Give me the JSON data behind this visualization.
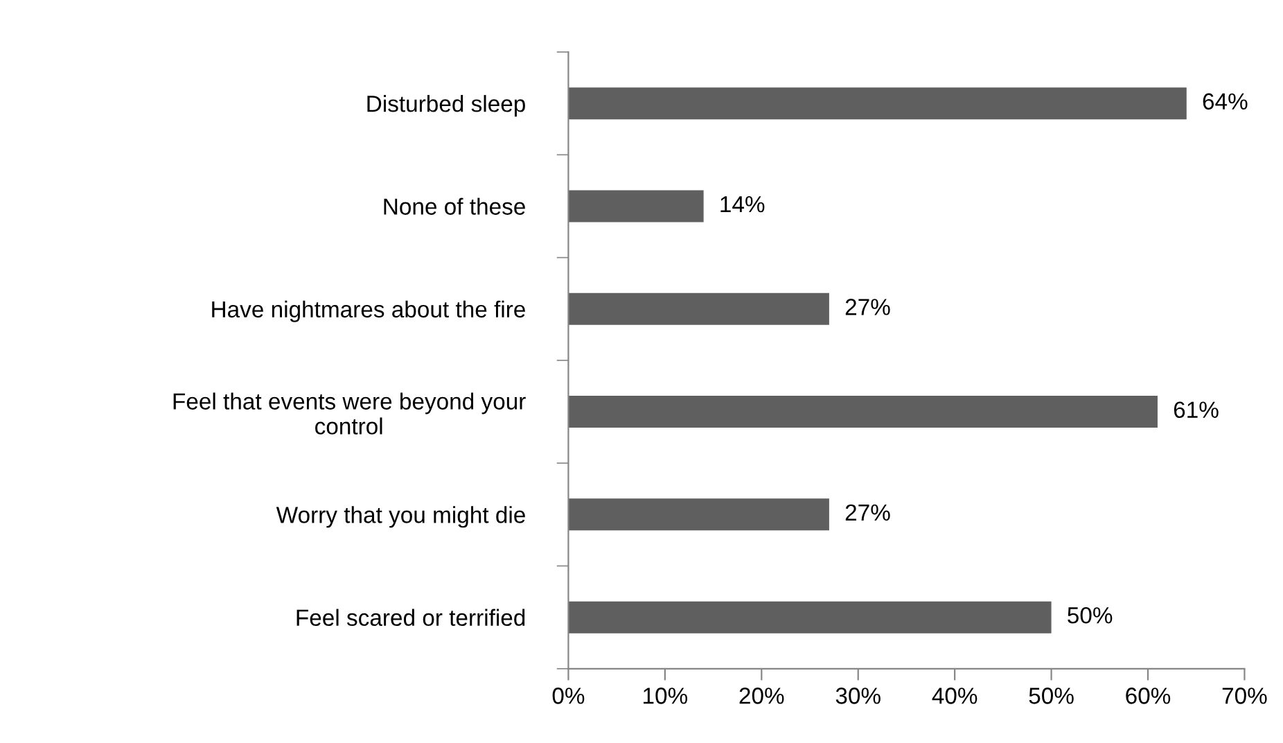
{
  "chart_data": {
    "type": "bar",
    "orientation": "horizontal",
    "categories": [
      "Disturbed sleep",
      "None of these",
      "Have nightmares about the fire",
      "Feel that events were beyond your\ncontrol",
      "Worry that you might die",
      "Feel scared or terrified"
    ],
    "values": [
      64,
      14,
      27,
      61,
      27,
      50
    ],
    "value_labels": [
      "64%",
      "14%",
      "27%",
      "61%",
      "27%",
      "50%"
    ],
    "color": "#5f5f5f",
    "xlim": [
      0,
      70
    ],
    "xticks": [
      {
        "value": 0,
        "label": "0%"
      },
      {
        "value": 10,
        "label": "10%"
      },
      {
        "value": 20,
        "label": "20%"
      },
      {
        "value": 30,
        "label": "30%"
      },
      {
        "value": 40,
        "label": "40%"
      },
      {
        "value": 50,
        "label": "50%"
      },
      {
        "value": 60,
        "label": "60%"
      },
      {
        "value": 70,
        "label": "70%"
      }
    ],
    "grid": false
  }
}
